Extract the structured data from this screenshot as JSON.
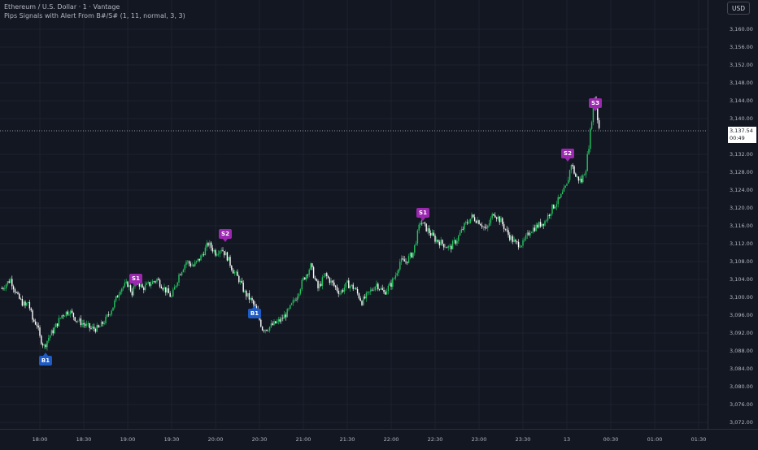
{
  "header": {
    "symbol_line": "Ethereum / U.S. Dollar · 1 · Vantage",
    "indicator_line": "Pips Signals with Alert From B#/S# (1, 11, normal, 3, 3)"
  },
  "currency_button": "USD",
  "current_price": {
    "value": "3,137.54",
    "countdown": "00:49"
  },
  "price_axis_labels": [
    "3,160.00",
    "3,156.00",
    "3,152.00",
    "3,148.00",
    "3,144.00",
    "3,140.00",
    "3,132.00",
    "3,128.00",
    "3,124.00",
    "3,120.00",
    "3,116.00",
    "3,112.00",
    "3,108.00",
    "3,104.00",
    "3,100.00",
    "3,096.00",
    "3,092.00",
    "3,088.00",
    "3,084.00",
    "3,080.00",
    "3,076.00",
    "3,072.00"
  ],
  "time_axis_labels": [
    "18:00",
    "18:30",
    "19:00",
    "19:30",
    "20:00",
    "20:30",
    "21:00",
    "21:30",
    "22:00",
    "22:30",
    "23:00",
    "23:30",
    "13",
    "00:30",
    "01:00",
    "01:30"
  ],
  "signals": [
    {
      "label": "B1",
      "type": "buy"
    },
    {
      "label": "S1",
      "type": "sell"
    },
    {
      "label": "S2",
      "type": "sell"
    },
    {
      "label": "B1",
      "type": "buy"
    },
    {
      "label": "S1",
      "type": "sell"
    },
    {
      "label": "S2",
      "type": "sell"
    },
    {
      "label": "S3",
      "type": "sell"
    }
  ],
  "colors": {
    "background": "#131722",
    "up_candle": "#22c55e",
    "down_candle": "#ffffff",
    "sell_signal": "#9c27b0",
    "buy_signal": "#1e5bc6",
    "grid": "#1e222d",
    "axis_text": "#b2b5be"
  },
  "chart_data": {
    "type": "line",
    "xlabel": "",
    "ylabel": "",
    "ylim": [
      3070,
      3163
    ],
    "y_ticks": [
      3160,
      3156,
      3152,
      3148,
      3144,
      3140,
      3132,
      3128,
      3124,
      3120,
      3116,
      3112,
      3108,
      3104,
      3100,
      3096,
      3092,
      3088,
      3084,
      3080,
      3076,
      3072
    ],
    "x_ticks": [
      "18:00",
      "18:30",
      "19:00",
      "19:30",
      "20:00",
      "20:30",
      "21:00",
      "21:30",
      "22:00",
      "22:30",
      "23:00",
      "23:30",
      "13",
      "00:30",
      "01:00",
      "01:30"
    ],
    "series": [
      {
        "x": [
          "17:34",
          "17:40",
          "17:45",
          "17:50",
          "17:52",
          "17:55",
          "17:58",
          "18:00",
          "18:03",
          "18:06",
          "18:10",
          "18:15",
          "18:20",
          "18:25",
          "18:30",
          "18:35",
          "18:40",
          "18:45",
          "18:50",
          "18:55",
          "19:00",
          "19:03",
          "19:06",
          "19:10",
          "19:15",
          "19:20",
          "19:25",
          "19:30",
          "19:35",
          "19:40",
          "19:45",
          "19:50",
          "19:55",
          "20:00",
          "20:04",
          "20:08",
          "20:12",
          "20:16",
          "20:20",
          "20:25",
          "20:28",
          "20:32",
          "20:35",
          "20:40",
          "20:45",
          "20:50",
          "20:55",
          "21:00",
          "21:05",
          "21:10",
          "21:15",
          "21:20",
          "21:25",
          "21:30",
          "21:35",
          "21:40",
          "21:45",
          "21:50",
          "21:55",
          "22:00",
          "22:03",
          "22:06",
          "22:10",
          "22:15",
          "22:20",
          "22:25",
          "22:30",
          "22:35",
          "22:40",
          "22:45",
          "22:50",
          "22:55",
          "23:00",
          "23:05",
          "23:10",
          "23:15",
          "23:20",
          "23:25",
          "23:30",
          "23:35",
          "23:40",
          "23:45",
          "23:50",
          "23:55",
          "00:00",
          "00:03",
          "00:06",
          "00:10",
          "00:13",
          "00:15",
          "00:17",
          "00:19",
          "00:21",
          "00:22"
        ],
        "y": [
          3102,
          3104,
          3100,
          3098,
          3099,
          3095,
          3094,
          3091,
          3089,
          3091,
          3093,
          3096,
          3097,
          3095,
          3094,
          3093,
          3093,
          3095,
          3098,
          3102,
          3103,
          3101,
          3104,
          3102,
          3103,
          3104,
          3102,
          3100,
          3105,
          3108,
          3107,
          3109,
          3112,
          3110,
          3111,
          3109,
          3106,
          3104,
          3101,
          3099,
          3097,
          3093,
          3093,
          3094,
          3095,
          3097,
          3100,
          3104,
          3107,
          3102,
          3105,
          3103,
          3101,
          3103,
          3102,
          3099,
          3101,
          3103,
          3101,
          3103,
          3105,
          3108,
          3108,
          3110,
          3117,
          3115,
          3113,
          3112,
          3111,
          3113,
          3116,
          3118,
          3117,
          3115,
          3119,
          3117,
          3114,
          3112,
          3112,
          3115,
          3116,
          3117,
          3120,
          3122,
          3125,
          3130,
          3127,
          3126,
          3129,
          3134,
          3140,
          3145,
          3140,
          3138
        ]
      }
    ]
  }
}
